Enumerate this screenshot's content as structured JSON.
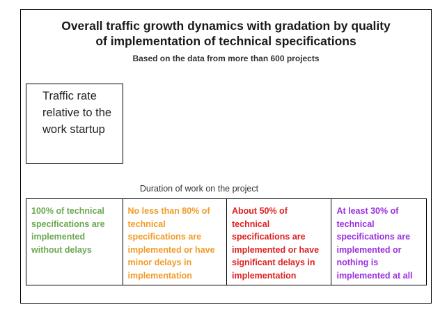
{
  "chart_data": {
    "type": "table",
    "title_lines": [
      "Overall traffic growth dynamics with gradation by quality",
      "of implementation of technical specifications"
    ],
    "subtitle": "Based on the data from more than 600 projects",
    "ylabel": "Traffic rate relative to the work startup",
    "xlabel": "Duration of work on the project",
    "legend": [
      {
        "label": "100% of technical specifications are implemented without delays",
        "color": "#6aa84f"
      },
      {
        "label": "No less than 80% of technical specifications are implemented or have minor delays in implementation",
        "color": "#f19b27"
      },
      {
        "label": "About 50% of technical specifications are implemented or have significant delays in implementation",
        "color": "#e02020"
      },
      {
        "label": "At least 30% of technical specifications are implemented or nothing is implemented at all",
        "color": "#9b30e0"
      }
    ]
  }
}
